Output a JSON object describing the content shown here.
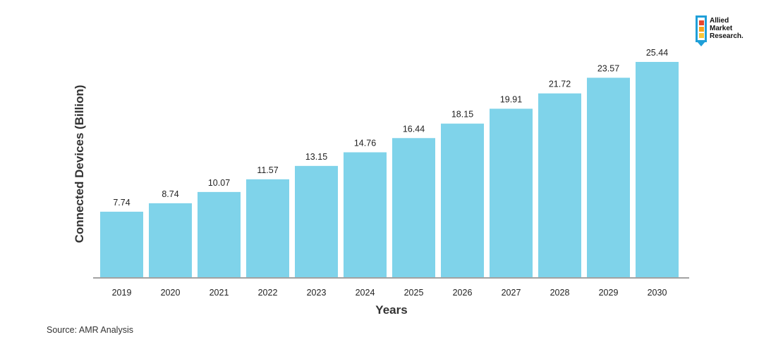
{
  "chart_data": {
    "type": "bar",
    "categories": [
      "2019",
      "2020",
      "2021",
      "2022",
      "2023",
      "2024",
      "2025",
      "2026",
      "2027",
      "2028",
      "2029",
      "2030"
    ],
    "values": [
      7.74,
      8.74,
      10.07,
      11.57,
      13.15,
      14.76,
      16.44,
      18.15,
      19.91,
      21.72,
      23.57,
      25.44
    ],
    "value_labels": [
      "7.74",
      "8.74",
      "10.07",
      "11.57",
      "13.15",
      "14.76",
      "16.44",
      "18.15",
      "19.91",
      "21.72",
      "23.57",
      "25.44"
    ],
    "xlabel": "Years",
    "ylabel": "Connected Devices (Billion)",
    "ylim": [
      0,
      26
    ],
    "grid": false,
    "bar_color": "#7fd3ea"
  },
  "source": "Source: AMR Analysis",
  "logo": {
    "line1": "Allied",
    "line2": "Market",
    "line3": "Research."
  }
}
